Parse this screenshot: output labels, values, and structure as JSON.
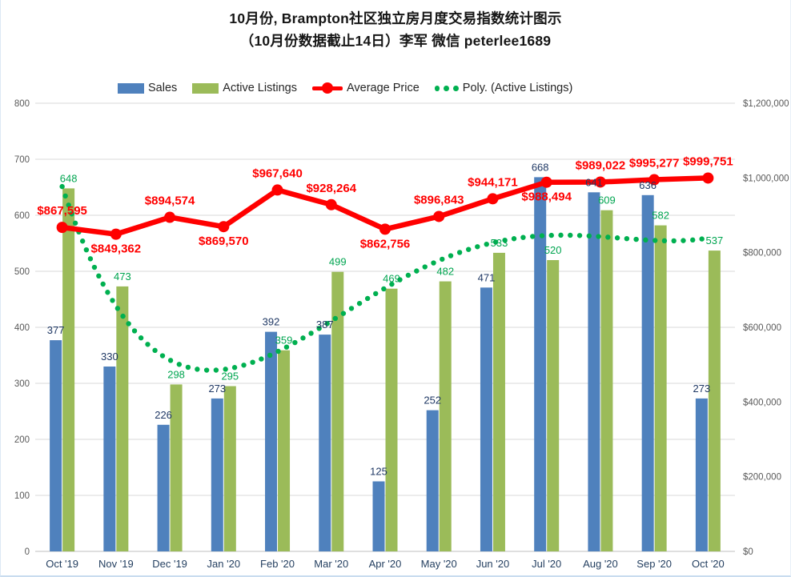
{
  "title": {
    "line1": "10月份, Brampton社区独立房月度交易指数统计图示",
    "line2": "（10月份数据截止14日）李军 微信 peterlee1689"
  },
  "legend": [
    {
      "label": "Sales",
      "marker": "bar-swatch",
      "color": "#4F81BD"
    },
    {
      "label": "Active Listings",
      "marker": "bar-swatch",
      "color": "#9BBB59"
    },
    {
      "label": "Average Price",
      "marker": "line-with-circle",
      "color": "#FF0000"
    },
    {
      "label": "Poly. (Active Listings)",
      "marker": "dotted-line",
      "color": "#00B050"
    }
  ],
  "chart_data": {
    "type": "bar",
    "subtype": "grouped bars + line on secondary axis + polynomial trendline",
    "categories": [
      "Oct '19",
      "Nov '19",
      "Dec '19",
      "Jan '20",
      "Feb '20",
      "Mar '20",
      "Apr '20",
      "May '20",
      "Jun '20",
      "Jul '20",
      "Aug '20",
      "Sep '20",
      "Oct '20"
    ],
    "series": [
      {
        "name": "Sales",
        "type": "bar",
        "axis": "left",
        "color": "#4F81BD",
        "values": [
          377,
          330,
          226,
          273,
          392,
          387,
          125,
          252,
          471,
          668,
          641,
          636,
          273
        ]
      },
      {
        "name": "Active Listings",
        "type": "bar",
        "axis": "left",
        "color": "#9BBB59",
        "values": [
          648,
          473,
          298,
          295,
          359,
          499,
          469,
          482,
          533,
          520,
          609,
          582,
          537
        ]
      },
      {
        "name": "Average Price",
        "type": "line",
        "axis": "right",
        "color": "#FF0000",
        "values": [
          867595,
          849362,
          894574,
          869570,
          967640,
          928264,
          862756,
          896843,
          944171,
          988494,
          989022,
          995277,
          999751
        ],
        "labels": [
          "$867,595",
          "$849,362",
          "$894,574",
          "$869,570",
          "$967,640",
          "$928,264",
          "$862,756",
          "$896,843",
          "$944,171",
          "$988,494",
          "$989,022",
          "$995,277",
          "$999,751"
        ],
        "label_positions": [
          "above",
          "below",
          "above",
          "below",
          "above",
          "above",
          "below",
          "above",
          "above",
          "below",
          "above",
          "above",
          "above"
        ]
      },
      {
        "name": "Poly. (Active Listings)",
        "type": "polynomial-trendline",
        "axis": "left",
        "color": "#00B050",
        "fit_of": "Active Listings",
        "degree": 4
      }
    ],
    "left_axis": {
      "min": 0,
      "max": 800,
      "step": 100,
      "ticks": [
        "0",
        "100",
        "200",
        "300",
        "400",
        "500",
        "600",
        "700",
        "800"
      ]
    },
    "right_axis": {
      "min": 0,
      "max": 1200000,
      "step": 200000,
      "ticks": [
        "$0",
        "$200,000",
        "$400,000",
        "$600,000",
        "$800,000",
        "$1,000,000",
        "$1,200,000"
      ]
    },
    "grid": true,
    "legend_position": "top",
    "style": {
      "grid_color": "#D9D9D9",
      "axis_line_color": "#BFBFBF",
      "axis_tick_color": "#595959",
      "month_label_color": "#243F60",
      "sales_label_color": "#1F3864",
      "listings_label_color": "#00A550",
      "price_label_color": "#FF0000"
    }
  }
}
